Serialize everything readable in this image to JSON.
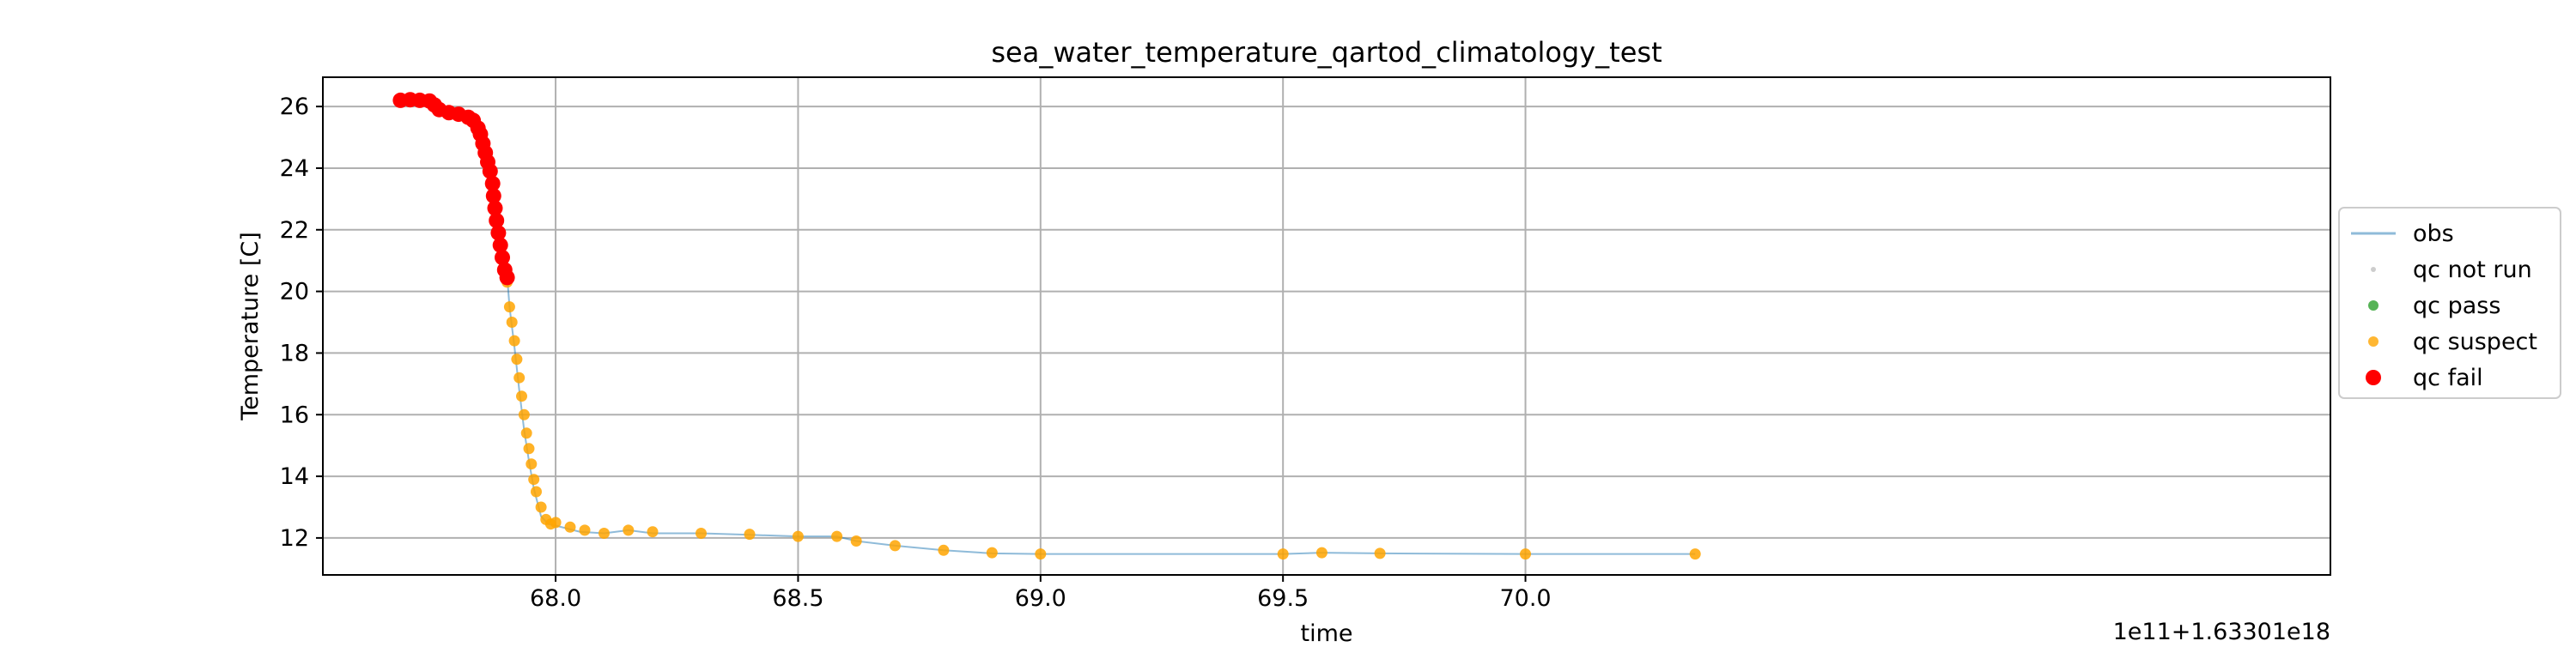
{
  "chart_data": {
    "type": "scatter",
    "title": "sea_water_temperature_qartod_climatology_test",
    "xlabel": "time",
    "ylabel": "Temperature [C]",
    "x_offset_label": "1e11+1.63301e18",
    "xlim": [
      67.52,
      71.66
    ],
    "ylim": [
      10.8,
      26.95
    ],
    "xticks": [
      68.0,
      68.5,
      69.0,
      69.5,
      70.0
    ],
    "xtick_labels": [
      "68.0",
      "68.5",
      "69.0",
      "69.5",
      "70.0"
    ],
    "yticks": [
      12,
      14,
      16,
      18,
      20,
      22,
      24,
      26
    ],
    "ytick_labels": [
      "12",
      "14",
      "16",
      "18",
      "20",
      "22",
      "24",
      "26"
    ],
    "grid": true,
    "legend_position": "right",
    "series": [
      {
        "name": "obs",
        "kind": "line",
        "color": "#1f77b4",
        "points": [
          [
            67.68,
            26.2
          ],
          [
            67.72,
            26.2
          ],
          [
            67.74,
            26.15
          ],
          [
            67.76,
            25.9
          ],
          [
            67.8,
            25.75
          ],
          [
            67.83,
            25.6
          ],
          [
            67.845,
            25.2
          ],
          [
            67.86,
            24.6
          ],
          [
            67.87,
            23.8
          ],
          [
            67.88,
            22.6
          ],
          [
            67.89,
            21.3
          ],
          [
            67.9,
            20.5
          ],
          [
            67.905,
            19.5
          ],
          [
            67.915,
            18.2
          ],
          [
            67.925,
            16.8
          ],
          [
            67.935,
            15.5
          ],
          [
            67.945,
            14.5
          ],
          [
            67.955,
            13.6
          ],
          [
            67.97,
            12.7
          ],
          [
            67.985,
            12.45
          ],
          [
            68.0,
            12.4
          ],
          [
            68.05,
            12.2
          ],
          [
            68.1,
            12.15
          ],
          [
            68.15,
            12.25
          ],
          [
            68.2,
            12.15
          ],
          [
            68.3,
            12.15
          ],
          [
            68.4,
            12.1
          ],
          [
            68.5,
            12.05
          ],
          [
            68.58,
            12.05
          ],
          [
            68.62,
            11.9
          ],
          [
            68.7,
            11.75
          ],
          [
            68.8,
            11.6
          ],
          [
            68.9,
            11.5
          ],
          [
            69.0,
            11.48
          ],
          [
            69.25,
            11.48
          ],
          [
            69.5,
            11.48
          ],
          [
            69.58,
            11.52
          ],
          [
            69.7,
            11.5
          ],
          [
            70.0,
            11.48
          ],
          [
            70.35,
            11.48
          ]
        ]
      },
      {
        "name": "qc not run",
        "kind": "marker",
        "color": "#c0c0c0",
        "points": []
      },
      {
        "name": "qc pass",
        "kind": "marker",
        "color": "#2ca02c",
        "points": []
      },
      {
        "name": "qc suspect",
        "kind": "marker",
        "color": "#ffa500",
        "points": [
          [
            67.9,
            20.3
          ],
          [
            67.905,
            19.5
          ],
          [
            67.91,
            19.0
          ],
          [
            67.915,
            18.4
          ],
          [
            67.92,
            17.8
          ],
          [
            67.925,
            17.2
          ],
          [
            67.93,
            16.6
          ],
          [
            67.935,
            16.0
          ],
          [
            67.94,
            15.4
          ],
          [
            67.945,
            14.9
          ],
          [
            67.95,
            14.4
          ],
          [
            67.955,
            13.9
          ],
          [
            67.96,
            13.5
          ],
          [
            67.97,
            13.0
          ],
          [
            67.98,
            12.6
          ],
          [
            67.99,
            12.45
          ],
          [
            68.0,
            12.5
          ],
          [
            68.03,
            12.35
          ],
          [
            68.06,
            12.25
          ],
          [
            68.1,
            12.15
          ],
          [
            68.15,
            12.25
          ],
          [
            68.2,
            12.2
          ],
          [
            68.3,
            12.15
          ],
          [
            68.4,
            12.12
          ],
          [
            68.5,
            12.05
          ],
          [
            68.58,
            12.05
          ],
          [
            68.62,
            11.9
          ],
          [
            68.7,
            11.75
          ],
          [
            68.8,
            11.6
          ],
          [
            68.9,
            11.52
          ],
          [
            69.0,
            11.48
          ],
          [
            69.5,
            11.48
          ],
          [
            69.58,
            11.52
          ],
          [
            69.7,
            11.5
          ],
          [
            70.0,
            11.48
          ],
          [
            70.35,
            11.48
          ]
        ]
      },
      {
        "name": "qc fail",
        "kind": "marker",
        "color": "#ff0000",
        "points": [
          [
            67.68,
            26.2
          ],
          [
            67.7,
            26.22
          ],
          [
            67.72,
            26.2
          ],
          [
            67.74,
            26.18
          ],
          [
            67.75,
            26.05
          ],
          [
            67.76,
            25.9
          ],
          [
            67.78,
            25.8
          ],
          [
            67.8,
            25.75
          ],
          [
            67.82,
            25.65
          ],
          [
            67.83,
            25.55
          ],
          [
            67.84,
            25.3
          ],
          [
            67.845,
            25.1
          ],
          [
            67.85,
            24.8
          ],
          [
            67.855,
            24.5
          ],
          [
            67.86,
            24.2
          ],
          [
            67.865,
            23.9
          ],
          [
            67.87,
            23.5
          ],
          [
            67.872,
            23.1
          ],
          [
            67.875,
            22.7
          ],
          [
            67.878,
            22.3
          ],
          [
            67.882,
            21.9
          ],
          [
            67.886,
            21.5
          ],
          [
            67.89,
            21.1
          ],
          [
            67.895,
            20.7
          ],
          [
            67.9,
            20.45
          ]
        ]
      }
    ]
  }
}
